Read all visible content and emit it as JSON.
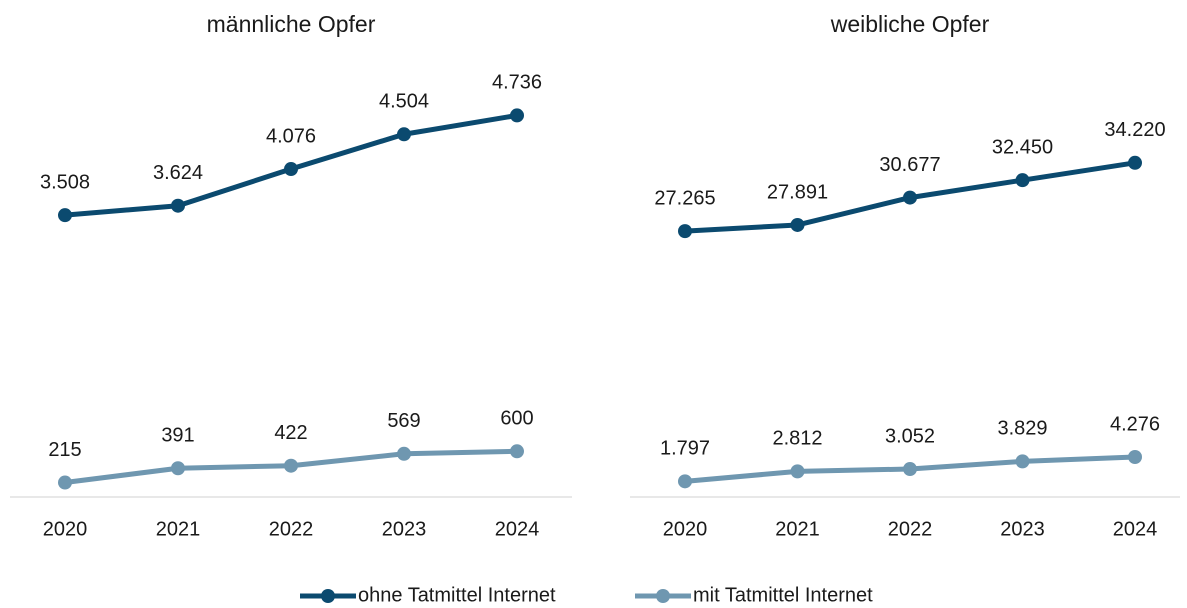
{
  "chart_data": [
    {
      "type": "line",
      "title": "männliche Opfer",
      "categories": [
        "2020",
        "2021",
        "2022",
        "2023",
        "2024"
      ],
      "ylim": [
        0,
        5000
      ],
      "series": [
        {
          "name": "ohne Tatmittel Internet",
          "color": "#0b4a6f",
          "values": [
            3508,
            3624,
            4076,
            4504,
            4736
          ],
          "value_labels": [
            "3.508",
            "3.624",
            "4.076",
            "4.504",
            "4.736"
          ]
        },
        {
          "name": "mit Tatmittel Internet",
          "color": "#6f97b0",
          "values": [
            215,
            391,
            422,
            569,
            600
          ]
        }
      ]
    },
    {
      "type": "line",
      "title": "weibliche Opfer",
      "categories": [
        "2020",
        "2021",
        "2022",
        "2023",
        "2024"
      ],
      "ylim": [
        0,
        40000
      ],
      "series": [
        {
          "color": "#0b4a6f",
          "values": [
            27265,
            27891,
            30677,
            32450,
            34220
          ],
          "value_labels": [
            "27.265",
            "27.891",
            "30.677",
            "32.450",
            "34.220"
          ]
        },
        {
          "color": "#6f97b0",
          "values": [
            1797,
            2812,
            3052,
            3829,
            4276
          ],
          "value_labels": [
            "1.797",
            "2.812",
            "3.052",
            "3.829",
            "4.276"
          ]
        }
      ]
    }
  ]
}
